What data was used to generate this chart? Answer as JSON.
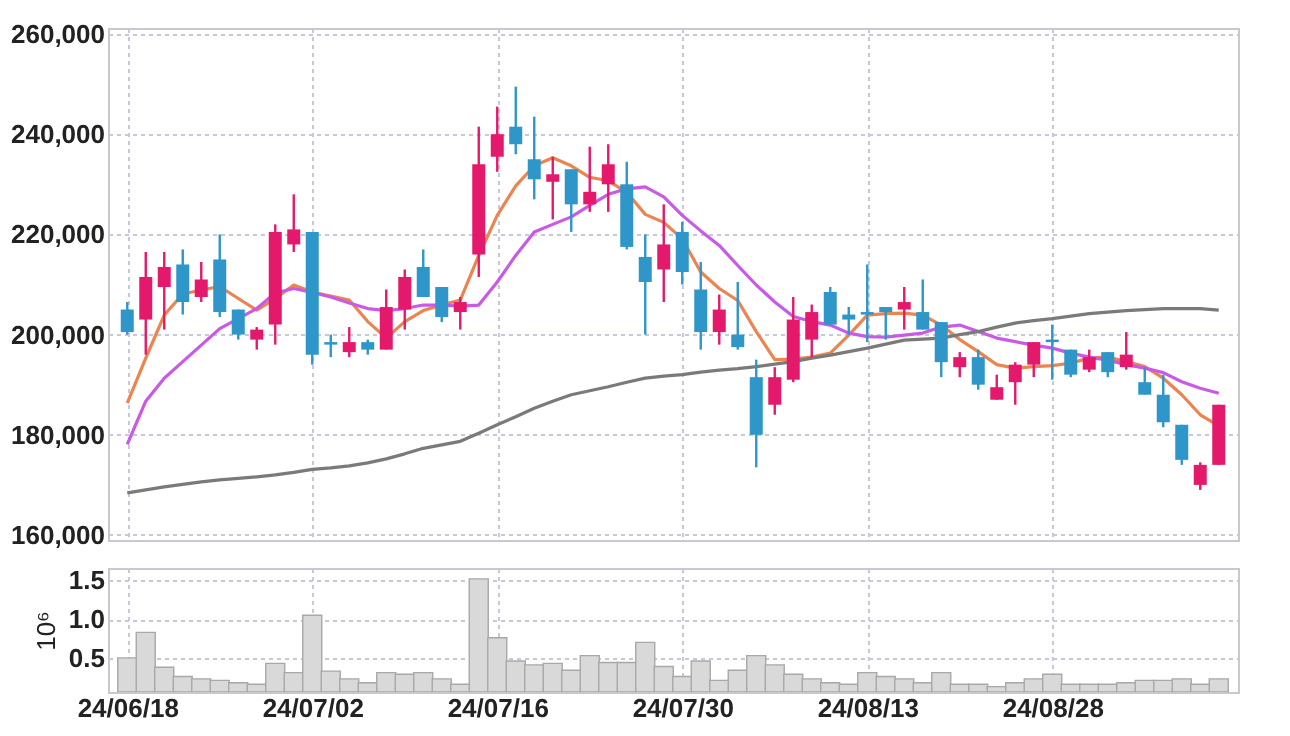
{
  "chart_data": [
    {
      "type": "candlestick",
      "categories": [
        null,
        null,
        null,
        null,
        null,
        null,
        null,
        null,
        null,
        null,
        null,
        null,
        null,
        null,
        null,
        null,
        null,
        null,
        null,
        null,
        null,
        null,
        null,
        null,
        null,
        null,
        null,
        null,
        null,
        null,
        null,
        null,
        null,
        null,
        null,
        null,
        null,
        null,
        null,
        null,
        null,
        null,
        null,
        null,
        null,
        null,
        null,
        null,
        null,
        null,
        null,
        null,
        null,
        null,
        null,
        null,
        null,
        null,
        null,
        null
      ],
      "ohlc": [
        [
          205000,
          206500,
          200000,
          200500
        ],
        [
          203000,
          216500,
          196000,
          211500
        ],
        [
          209500,
          216500,
          201000,
          213500
        ],
        [
          214000,
          217000,
          204000,
          206500
        ],
        [
          207500,
          214500,
          206500,
          211000
        ],
        [
          215000,
          220000,
          203500,
          204500
        ],
        [
          205000,
          205000,
          199000,
          200000
        ],
        [
          199000,
          201500,
          197000,
          201000
        ],
        [
          202000,
          222000,
          198000,
          220500
        ],
        [
          218000,
          228000,
          216500,
          221000
        ],
        [
          220500,
          220500,
          194000,
          196000
        ],
        [
          198500,
          200000,
          195500,
          198000
        ],
        [
          196500,
          201500,
          195500,
          198500
        ],
        [
          198500,
          199000,
          196000,
          197000
        ],
        [
          197000,
          209000,
          197000,
          205500
        ],
        [
          205000,
          213000,
          201000,
          211500
        ],
        [
          213500,
          217000,
          207500,
          207500
        ],
        [
          209500,
          209500,
          202500,
          203500
        ],
        [
          204500,
          207500,
          201000,
          206500
        ],
        [
          216000,
          241500,
          211500,
          234000
        ],
        [
          235500,
          245500,
          232500,
          240000
        ],
        [
          241500,
          249500,
          236000,
          238000
        ],
        [
          235000,
          243500,
          227000,
          231000
        ],
        [
          230500,
          235500,
          223000,
          232000
        ],
        [
          233000,
          233000,
          220500,
          226000
        ],
        [
          226000,
          237500,
          224500,
          228500
        ],
        [
          230000,
          238000,
          224500,
          234000
        ],
        [
          230000,
          234500,
          217000,
          217500
        ],
        [
          215500,
          220000,
          200000,
          210500
        ],
        [
          213000,
          226000,
          206500,
          218000
        ],
        [
          220500,
          222500,
          210000,
          212500
        ],
        [
          209000,
          214500,
          197000,
          200500
        ],
        [
          200500,
          208000,
          198000,
          205000
        ],
        [
          200000,
          210500,
          197000,
          197500
        ],
        [
          191500,
          195000,
          173500,
          180000
        ],
        [
          186000,
          193500,
          184000,
          191500
        ],
        [
          191000,
          207500,
          190500,
          203000
        ],
        [
          199000,
          206000,
          195500,
          204500
        ],
        [
          208500,
          209500,
          202000,
          202000
        ],
        [
          204000,
          205500,
          200000,
          203000
        ],
        [
          204500,
          214000,
          198500,
          204000
        ],
        [
          205500,
          205500,
          199000,
          204500
        ],
        [
          205000,
          209500,
          201000,
          206500
        ],
        [
          204500,
          211000,
          201000,
          201000
        ],
        [
          202500,
          202500,
          191500,
          194500
        ],
        [
          193500,
          196500,
          191500,
          195500
        ],
        [
          195500,
          197000,
          189000,
          190000
        ],
        [
          187000,
          192000,
          187000,
          189500
        ],
        [
          190500,
          194500,
          186000,
          194000
        ],
        [
          194000,
          198500,
          191500,
          198500
        ],
        [
          199000,
          202000,
          191000,
          198500
        ],
        [
          197000,
          197000,
          191500,
          192000
        ],
        [
          193000,
          197000,
          192500,
          195500
        ],
        [
          196500,
          196500,
          191500,
          192500
        ],
        [
          193500,
          200500,
          193000,
          196000
        ],
        [
          190500,
          193500,
          188000,
          188000
        ],
        [
          188000,
          192000,
          181500,
          182500
        ],
        [
          182000,
          182000,
          174000,
          175000
        ],
        [
          170000,
          174500,
          169000,
          174000
        ],
        [
          174000,
          186000,
          174000,
          186000
        ]
      ],
      "colors": [
        "#2e96c8",
        "#e5196b",
        "#e5196b",
        "#2e96c8",
        "#e5196b",
        "#2e96c8",
        "#2e96c8",
        "#e5196b",
        "#e5196b",
        "#e5196b",
        "#2e96c8",
        "#2e96c8",
        "#e5196b",
        "#2e96c8",
        "#e5196b",
        "#e5196b",
        "#2e96c8",
        "#2e96c8",
        "#e5196b",
        "#e5196b",
        "#e5196b",
        "#2e96c8",
        "#2e96c8",
        "#e5196b",
        "#2e96c8",
        "#e5196b",
        "#e5196b",
        "#2e96c8",
        "#2e96c8",
        "#e5196b",
        "#2e96c8",
        "#2e96c8",
        "#e5196b",
        "#2e96c8",
        "#2e96c8",
        "#e5196b",
        "#e5196b",
        "#e5196b",
        "#2e96c8",
        "#2e96c8",
        "#2e96c8",
        "#2e96c8",
        "#e5196b",
        "#2e96c8",
        "#2e96c8",
        "#e5196b",
        "#2e96c8",
        "#e5196b",
        "#e5196b",
        "#e5196b",
        "#2e96c8",
        "#2e96c8",
        "#e5196b",
        "#2e96c8",
        "#e5196b",
        "#2e96c8",
        "#2e96c8",
        "#2e96c8",
        "#e5196b",
        "#e5196b"
      ],
      "series": [
        {
          "type": "line",
          "color": "#ec8450",
          "values": [
            186300,
            195300,
            203900,
            208100,
            208900,
            209600,
            207200,
            204900,
            207200,
            209900,
            208500,
            207700,
            206900,
            202600,
            199300,
            202600,
            204800,
            205900,
            206900,
            215800,
            223800,
            229700,
            233700,
            235300,
            233700,
            231400,
            230700,
            228400,
            224000,
            222400,
            219100,
            212500,
            209200,
            206800,
            200600,
            195000,
            195100,
            195500,
            196300,
            199900,
            203900,
            204200,
            204300,
            203900,
            201900,
            199000,
            196600,
            194000,
            193300,
            193600,
            193800,
            194300,
            195300,
            195500,
            194600,
            193600,
            191300,
            188000,
            184000,
            181800
          ]
        },
        {
          "type": "line",
          "color": "#c95ae6",
          "values": [
            178100,
            186700,
            191300,
            194600,
            197900,
            201200,
            203200,
            205200,
            208300,
            209200,
            208400,
            207500,
            206300,
            205200,
            204800,
            205200,
            205900,
            205900,
            205700,
            205900,
            210500,
            215800,
            220500,
            222000,
            223500,
            225800,
            228000,
            229100,
            229500,
            227500,
            223800,
            220700,
            217800,
            213800,
            209900,
            206500,
            203600,
            202600,
            201900,
            200300,
            199600,
            199500,
            199900,
            200300,
            201500,
            201900,
            200600,
            199300,
            198600,
            197900,
            197300,
            196300,
            195500,
            194900,
            194000,
            193300,
            192400,
            190600,
            189300,
            188300
          ]
        },
        {
          "type": "line",
          "color": "#7a7a7a",
          "values": [
            168400,
            169000,
            169600,
            170100,
            170600,
            171000,
            171300,
            171600,
            172000,
            172500,
            173100,
            173400,
            173800,
            174400,
            175200,
            176200,
            177300,
            178000,
            178700,
            180300,
            182000,
            183600,
            185300,
            186700,
            188000,
            188800,
            189600,
            190500,
            191300,
            191700,
            192000,
            192500,
            192900,
            193200,
            193600,
            194100,
            194600,
            195300,
            195900,
            196600,
            197300,
            198100,
            198900,
            199100,
            199300,
            200000,
            200600,
            201500,
            202300,
            202800,
            203200,
            203700,
            204200,
            204500,
            204800,
            205000,
            205200,
            205200,
            205200,
            204900
          ]
        }
      ],
      "ylim": [
        159000,
        261200
      ],
      "yticks": [
        {
          "value": 160000,
          "label": "160,000"
        },
        {
          "value": 180000,
          "label": "180,000"
        },
        {
          "value": 200000,
          "label": "200,000"
        },
        {
          "value": 220000,
          "label": "220,000"
        },
        {
          "value": 240000,
          "label": "240,000"
        },
        {
          "value": 260000,
          "label": "260,000"
        }
      ],
      "grid": true,
      "tick_labels": "y"
    },
    {
      "type": "bar",
      "categories": [
        "24/06/18",
        null,
        null,
        null,
        null,
        null,
        null,
        null,
        null,
        null,
        "24/07/02",
        null,
        null,
        null,
        null,
        null,
        null,
        null,
        null,
        null,
        "24/07/16",
        null,
        null,
        null,
        null,
        null,
        null,
        null,
        null,
        null,
        "24/07/30",
        null,
        null,
        null,
        null,
        null,
        null,
        null,
        null,
        null,
        "24/08/13",
        null,
        null,
        null,
        null,
        null,
        null,
        null,
        null,
        null,
        "24/08/28",
        null,
        null,
        null,
        null,
        null,
        null,
        null,
        null,
        null
      ],
      "ylabel": "10⁶",
      "color": "#d9d9d9",
      "values": [
        0.5,
        0.83,
        0.38,
        0.26,
        0.23,
        0.21,
        0.18,
        0.16,
        0.43,
        0.31,
        1.05,
        0.33,
        0.23,
        0.18,
        0.31,
        0.29,
        0.31,
        0.23,
        0.16,
        1.52,
        0.76,
        0.46,
        0.41,
        0.43,
        0.34,
        0.53,
        0.44,
        0.44,
        0.7,
        0.39,
        0.26,
        0.46,
        0.21,
        0.34,
        0.53,
        0.41,
        0.29,
        0.23,
        0.18,
        0.16,
        0.31,
        0.26,
        0.23,
        0.18,
        0.31,
        0.16,
        0.16,
        0.13,
        0.18,
        0.23,
        0.29,
        0.16,
        0.16,
        0.16,
        0.18,
        0.21,
        0.21,
        0.23,
        0.16,
        0.23
      ],
      "ylim": [
        0.06,
        1.66
      ],
      "yticks": [
        0.5,
        {
          "value": 1.0,
          "label": "1.0"
        },
        1.5
      ],
      "grid": true
    }
  ]
}
